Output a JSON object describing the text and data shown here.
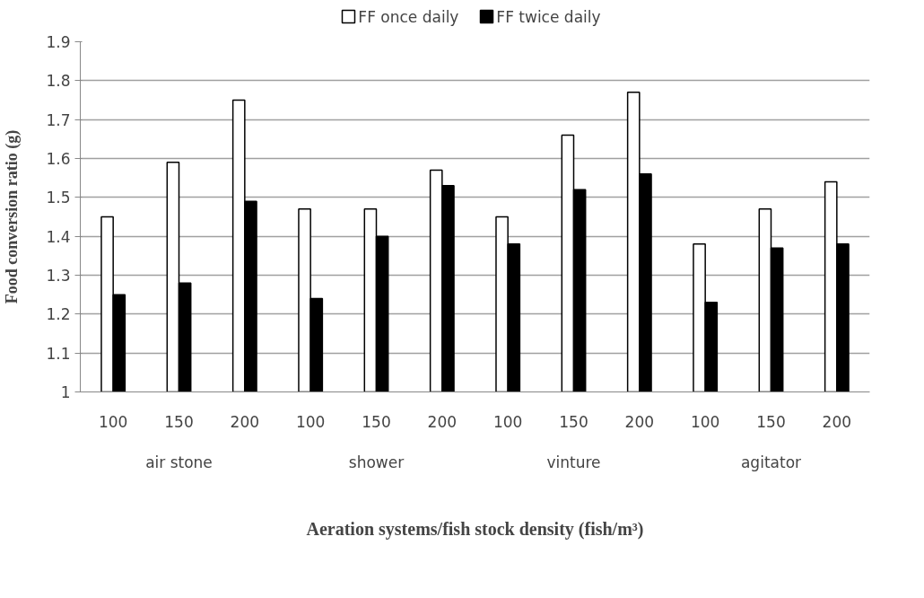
{
  "chart_data": {
    "type": "bar",
    "xlabel": "Aeration systems/fish stock density (fish/m³)",
    "ylabel": "Food conversion ratio (g)",
    "categories": [
      "100",
      "150",
      "200",
      "100",
      "150",
      "200",
      "100",
      "150",
      "200",
      "100",
      "150",
      "200"
    ],
    "annotations": [
      "air stone",
      "shower",
      "vinture",
      "agitator"
    ],
    "series": [
      {
        "name": "FF once daily",
        "color": "#ffffff",
        "values": [
          1.45,
          1.59,
          1.75,
          1.47,
          1.47,
          1.57,
          1.45,
          1.66,
          1.77,
          1.38,
          1.47,
          1.54
        ]
      },
      {
        "name": "FF twice daily",
        "color": "#000000",
        "values": [
          1.25,
          1.28,
          1.49,
          1.24,
          1.4,
          1.53,
          1.38,
          1.52,
          1.56,
          1.23,
          1.37,
          1.38
        ]
      }
    ],
    "ylim": [
      1,
      1.9
    ],
    "yticks": [
      1,
      1.1,
      1.2,
      1.3,
      1.4,
      1.5,
      1.6,
      1.7,
      1.8,
      1.9
    ],
    "grid": "y",
    "legend": "top"
  }
}
